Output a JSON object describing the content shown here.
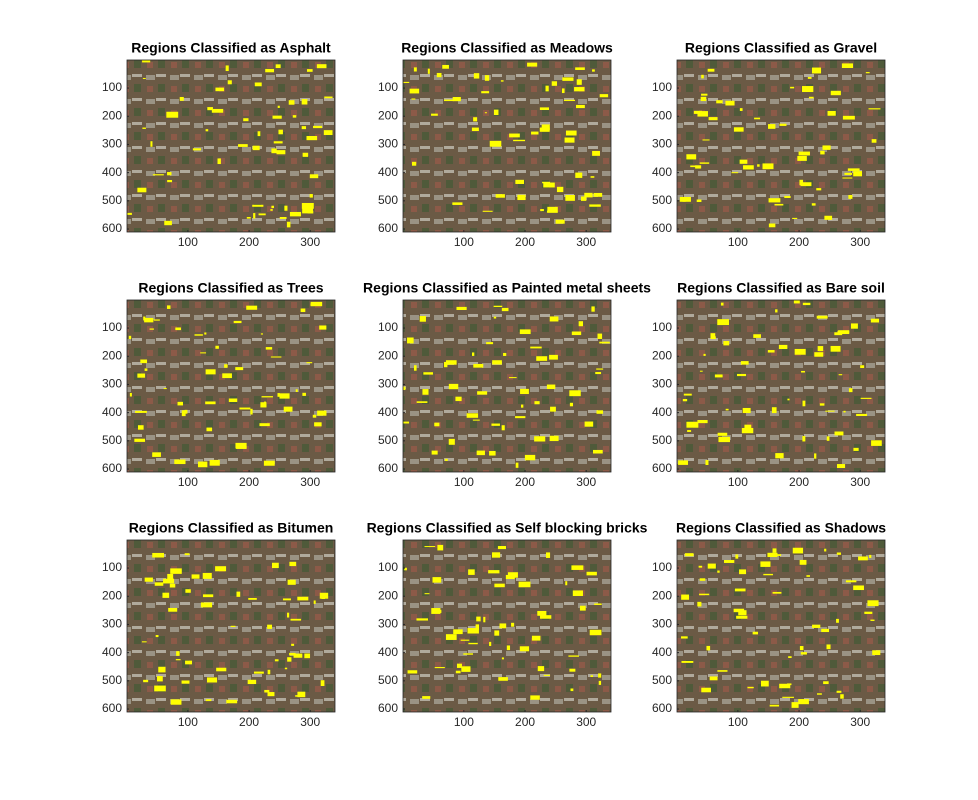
{
  "chart_data": [
    {
      "type": "image",
      "title": "Regions Classified as Asphalt",
      "xlim": [
        0.5,
        340.5
      ],
      "ylim": [
        0.5,
        610.5
      ],
      "xticks": [
        100,
        200,
        300
      ],
      "yticks": [
        100,
        200,
        300,
        400,
        500,
        600
      ]
    },
    {
      "type": "image",
      "title": "Regions Classified as Meadows",
      "xlim": [
        0.5,
        340.5
      ],
      "ylim": [
        0.5,
        610.5
      ],
      "xticks": [
        100,
        200,
        300
      ],
      "yticks": [
        100,
        200,
        300,
        400,
        500,
        600
      ]
    },
    {
      "type": "image",
      "title": "Regions Classified as Gravel",
      "xlim": [
        0.5,
        340.5
      ],
      "ylim": [
        0.5,
        610.5
      ],
      "xticks": [
        100,
        200,
        300
      ],
      "yticks": [
        100,
        200,
        300,
        400,
        500,
        600
      ]
    },
    {
      "type": "image",
      "title": "Regions Classified as Trees",
      "xlim": [
        0.5,
        340.5
      ],
      "ylim": [
        0.5,
        610.5
      ],
      "xticks": [
        100,
        200,
        300
      ],
      "yticks": [
        100,
        200,
        300,
        400,
        500,
        600
      ]
    },
    {
      "type": "image",
      "title": "Regions Classified as Painted metal sheets",
      "xlim": [
        0.5,
        340.5
      ],
      "ylim": [
        0.5,
        610.5
      ],
      "xticks": [
        100,
        200,
        300
      ],
      "yticks": [
        100,
        200,
        300,
        400,
        500,
        600
      ]
    },
    {
      "type": "image",
      "title": "Regions Classified as Bare soil",
      "xlim": [
        0.5,
        340.5
      ],
      "ylim": [
        0.5,
        610.5
      ],
      "xticks": [
        100,
        200,
        300
      ],
      "yticks": [
        100,
        200,
        300,
        400,
        500,
        600
      ]
    },
    {
      "type": "image",
      "title": "Regions Classified as Bitumen",
      "xlim": [
        0.5,
        340.5
      ],
      "ylim": [
        0.5,
        610.5
      ],
      "xticks": [
        100,
        200,
        300
      ],
      "yticks": [
        100,
        200,
        300,
        400,
        500,
        600
      ]
    },
    {
      "type": "image",
      "title": "Regions Classified as Self blocking bricks",
      "xlim": [
        0.5,
        340.5
      ],
      "ylim": [
        0.5,
        610.5
      ],
      "xticks": [
        100,
        200,
        300
      ],
      "yticks": [
        100,
        200,
        300,
        400,
        500,
        600
      ]
    },
    {
      "type": "image",
      "title": "Regions Classified as Shadows",
      "xlim": [
        0.5,
        340.5
      ],
      "ylim": [
        0.5,
        610.5
      ],
      "xticks": [
        100,
        200,
        300
      ],
      "yticks": [
        100,
        200,
        300,
        400,
        500,
        600
      ]
    }
  ]
}
